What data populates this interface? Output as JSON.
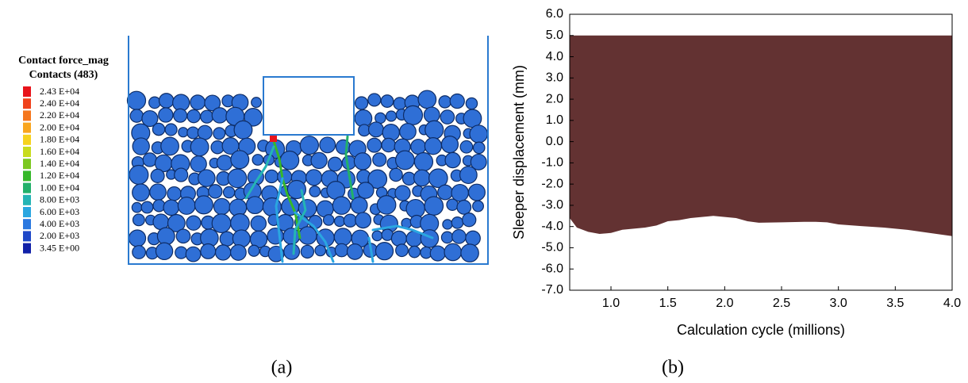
{
  "panel_a": {
    "legend_title": [
      "Contact force_mag",
      "Contacts (483)"
    ],
    "legend": [
      {
        "label": "2.43 E+04",
        "color": "#e8141b"
      },
      {
        "label": "2.40 E+04",
        "color": "#f0421c"
      },
      {
        "label": "2.20 E+04",
        "color": "#f5761c"
      },
      {
        "label": "2.00 E+04",
        "color": "#f9a51e"
      },
      {
        "label": "1.80 E+04",
        "color": "#f6d21e"
      },
      {
        "label": "1.60 E+04",
        "color": "#c8dc1e"
      },
      {
        "label": "1.40 E+04",
        "color": "#7cc820"
      },
      {
        "label": "1.20 E+04",
        "color": "#36b82a"
      },
      {
        "label": "1.00 E+04",
        "color": "#22b06a"
      },
      {
        "label": "8.00 E+03",
        "color": "#25b4b4"
      },
      {
        "label": "6.00 E+03",
        "color": "#2aa6e0"
      },
      {
        "label": "4.00 E+03",
        "color": "#2a78e0"
      },
      {
        "label": "2.00 E+03",
        "color": "#1e48c8"
      },
      {
        "label": "3.45 E+00",
        "color": "#1020a8"
      }
    ]
  },
  "captions": [
    "(a)",
    "(b)"
  ],
  "chart_data": {
    "type": "range_area",
    "xlabel": "Calculation cycle (millions)",
    "ylabel": "Sleeper displacement (mm)",
    "color": "#633232",
    "x": [
      0.637,
      0.7,
      0.8,
      0.9,
      1.0,
      1.1,
      1.2,
      1.3,
      1.4,
      1.5,
      1.6,
      1.7,
      1.8,
      1.9,
      2.0,
      2.1,
      2.2,
      2.3,
      2.5,
      2.7,
      2.8,
      2.9,
      3.0,
      3.2,
      3.4,
      3.6,
      3.8,
      4.0
    ],
    "high": [
      5.0,
      5.0,
      5.0,
      5.0,
      5.0,
      5.0,
      5.0,
      5.0,
      5.0,
      5.0,
      5.0,
      5.0,
      5.0,
      5.0,
      5.0,
      5.0,
      5.0,
      5.0,
      5.0,
      5.0,
      5.0,
      5.0,
      5.0,
      5.0,
      5.0,
      5.0,
      5.0,
      5.0
    ],
    "low": [
      -3.6,
      -4.05,
      -4.25,
      -4.35,
      -4.3,
      -4.15,
      -4.1,
      -4.05,
      -3.95,
      -3.75,
      -3.7,
      -3.6,
      -3.55,
      -3.5,
      -3.55,
      -3.6,
      -3.75,
      -3.82,
      -3.8,
      -3.78,
      -3.78,
      -3.8,
      -3.9,
      -3.98,
      -4.05,
      -4.15,
      -4.3,
      -4.45
    ],
    "xlim": [
      0.637,
      4.0
    ],
    "ylim": [
      -7.0,
      6.0
    ],
    "xticks": [
      {
        "value": 1,
        "label": "1.0"
      },
      1.5,
      {
        "value": 2,
        "label": "2.0"
      },
      2.5,
      {
        "value": 3,
        "label": "3.0"
      },
      3.5,
      {
        "value": 4,
        "label": "4.0"
      }
    ],
    "yticks": [
      {
        "value": -7,
        "label": "-7.0"
      },
      {
        "value": -6,
        "label": "-6.0"
      },
      {
        "value": -5,
        "label": "-5.0"
      },
      {
        "value": -4,
        "label": "-4.0"
      },
      {
        "value": -3,
        "label": "-3.0"
      },
      {
        "value": -2,
        "label": "-2.0"
      },
      {
        "value": -1,
        "label": "-1.0"
      },
      {
        "value": 0,
        "label": "0.0"
      },
      {
        "value": 1,
        "label": "1.0"
      },
      {
        "value": 2,
        "label": "2.0"
      },
      {
        "value": 3,
        "label": "3.0"
      },
      {
        "value": 4,
        "label": "4.0"
      },
      {
        "value": 5,
        "label": "5.0"
      },
      {
        "value": 6,
        "label": "6.0"
      }
    ]
  }
}
